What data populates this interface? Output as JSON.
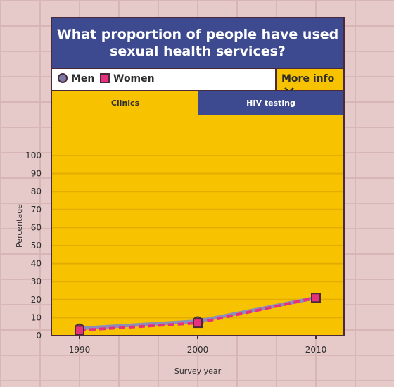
{
  "header": {
    "title_line1": "What proportion of people have used",
    "title_line2": "sexual health services?"
  },
  "legend": {
    "men": "Men",
    "women": "Women",
    "more_info": "More info"
  },
  "tabs": [
    {
      "label": "Clinics"
    },
    {
      "label": "HIV testing"
    }
  ],
  "colors": {
    "men": "#8a8fb8",
    "women": "#e8317d",
    "panel": "#f7c200",
    "header": "#3e4a8f"
  },
  "chart_data": {
    "type": "line",
    "x": [
      1990,
      2000,
      2010
    ],
    "series": [
      {
        "name": "Men",
        "values": [
          4,
          8,
          21
        ]
      },
      {
        "name": "Women",
        "values": [
          3,
          7,
          21
        ]
      }
    ],
    "xlabel": "Survey year",
    "ylabel": "Percentage",
    "ylim": [
      0,
      100
    ],
    "yticks": [
      0,
      10,
      20,
      30,
      40,
      50,
      60,
      70,
      80,
      90,
      100
    ],
    "xticks": [
      "1990",
      "2000",
      "2010"
    ],
    "grid": true
  }
}
